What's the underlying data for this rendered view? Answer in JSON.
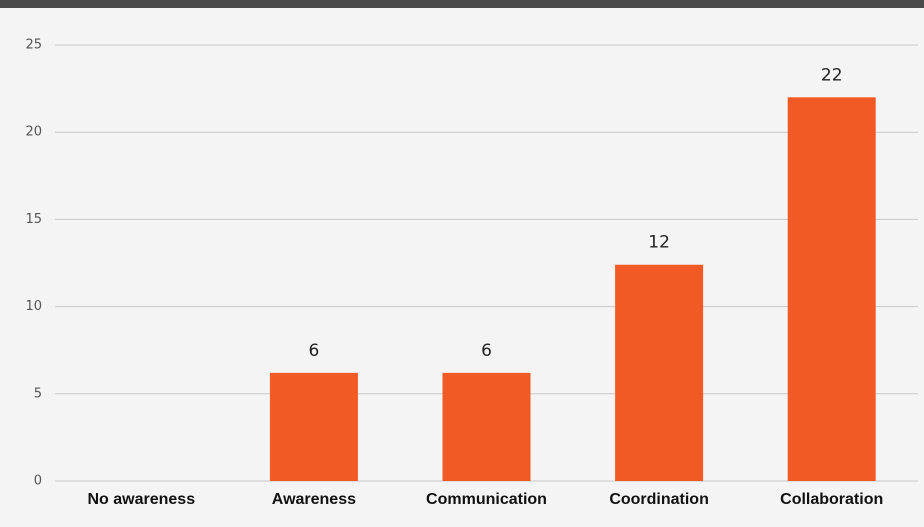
{
  "chart_data": {
    "type": "bar",
    "categories": [
      "No awareness",
      "Awareness",
      "Communication",
      "Coordination",
      "Collaboration"
    ],
    "values": [
      0,
      6.2,
      6.2,
      12.4,
      22
    ],
    "value_labels": [
      null,
      "6",
      "6",
      "12",
      "22"
    ],
    "color": "#f15a24",
    "ylim": [
      0,
      25
    ],
    "yticks": [
      0,
      5,
      10,
      15,
      20,
      25
    ],
    "grid": true
  }
}
